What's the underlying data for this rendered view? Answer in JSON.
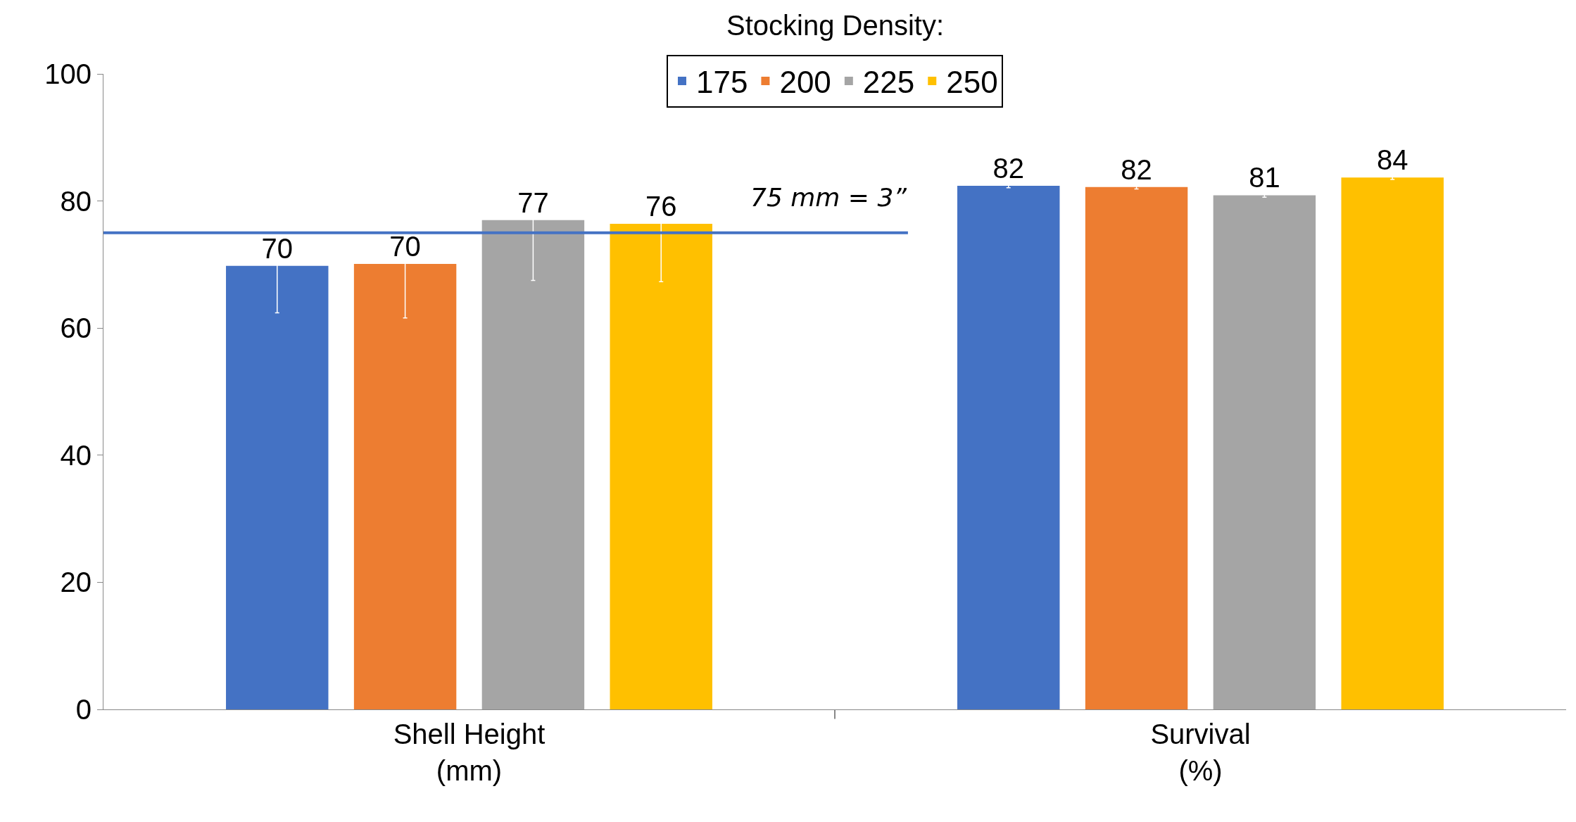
{
  "chart_data": {
    "type": "bar",
    "legend_title": "Stocking Density:",
    "categories": [
      "Shell Height\n(mm)",
      "Survival\n(%)"
    ],
    "series": [
      {
        "name": "175",
        "color": "#4472c4",
        "values": [
          69.8,
          82.4
        ],
        "errors": [
          7.4,
          0.3
        ],
        "value_labels": [
          "70",
          "82"
        ]
      },
      {
        "name": "200",
        "color": "#ed7d31",
        "values": [
          70.1,
          82.2
        ],
        "errors": [
          8.5,
          0.3
        ],
        "value_labels": [
          "70",
          "82"
        ]
      },
      {
        "name": "225",
        "color": "#a5a5a5",
        "values": [
          77.0,
          80.9
        ],
        "errors": [
          9.5,
          0.3
        ],
        "value_labels": [
          "77",
          "81"
        ]
      },
      {
        "name": "250",
        "color": "#ffc000",
        "values": [
          76.4,
          83.7
        ],
        "errors": [
          9.1,
          0.3
        ],
        "value_labels": [
          "76",
          "84"
        ]
      }
    ],
    "ylim": [
      0,
      100
    ],
    "yticks": [
      0,
      20,
      40,
      60,
      80,
      100
    ],
    "ref_lines": [
      {
        "axis": "y",
        "value": 75,
        "label": "75 mm = 3”",
        "color": "#4472c4"
      }
    ],
    "grid": false,
    "legend": "top"
  }
}
